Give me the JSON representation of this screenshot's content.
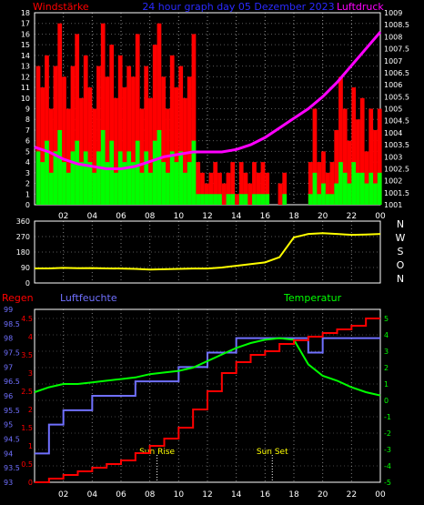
{
  "header": {
    "left_title": "Windstärke",
    "center_title": "24 hour graph day  05 Dezember 2023",
    "right_title": "Luftdruck"
  },
  "colors": {
    "background": "#000000",
    "wind_gust": "#ff0000",
    "wind_speed": "#00ff00",
    "pressure": "#ff00ff",
    "direction": "#ffff00",
    "humidity": "#7070ff",
    "temperature": "#00ff00",
    "rain": "#ff0000",
    "title": "#2a2aff",
    "axis": "#ffffff",
    "grid": "#ffffff"
  },
  "x_ticks": [
    "02",
    "04",
    "06",
    "08",
    "10",
    "12",
    "14",
    "16",
    "18",
    "20",
    "22",
    "00"
  ],
  "panel_wind": {
    "left_ticks": [
      "0",
      "1",
      "2",
      "3",
      "4",
      "5",
      "6",
      "7",
      "8",
      "9",
      "10",
      "11",
      "12",
      "13",
      "14",
      "15",
      "16",
      "17",
      "18"
    ],
    "right_ticks": [
      "1001",
      "1001.5",
      "1002",
      "1002.5",
      "1003",
      "1003.5",
      "1004",
      "1004.5",
      "1005",
      "1005.5",
      "1006",
      "1006.5",
      "1007",
      "1007.5",
      "1008",
      "1008.5",
      "1009"
    ]
  },
  "panel_direction": {
    "left_ticks": [
      "0",
      "90",
      "180",
      "270",
      "360"
    ],
    "compass": [
      "N",
      "W",
      "S",
      "O",
      "N"
    ]
  },
  "panel_climate": {
    "label_rain": "Regen",
    "label_humidity": "Luftfeuchte",
    "label_temperature": "Temperatur",
    "humidity_ticks": [
      "93",
      "93.5",
      "94",
      "94.5",
      "95",
      "95.5",
      "96",
      "96.5",
      "97",
      "97.5",
      "98",
      "98.5",
      "99"
    ],
    "rain_ticks": [
      "0",
      "0.5",
      "1",
      "1.5",
      "2",
      "2.5",
      "3",
      "3.5",
      "4",
      "4.5"
    ],
    "temp_ticks": [
      "-5",
      "-4",
      "-3",
      "-2",
      "-1",
      "0",
      "1",
      "2",
      "3",
      "4",
      "5"
    ],
    "sun_rise": "Sun Rise",
    "sun_set": "Sun Set"
  },
  "chart_data": [
    {
      "type": "bar",
      "subtype": "wind_and_pressure",
      "x_unit": "hour",
      "x_range": [
        0,
        24
      ],
      "ylim_left": [
        0,
        18
      ],
      "ylim_right": [
        1001,
        1009
      ],
      "grid": true,
      "series": [
        {
          "name": "Windstärke",
          "kind": "gust_bars",
          "axis": "left",
          "hours": [
            0.1,
            0.4,
            0.7,
            1.0,
            1.3,
            1.6,
            1.9,
            2.2,
            2.5,
            2.8,
            3.1,
            3.4,
            3.7,
            4.0,
            4.3,
            4.6,
            4.9,
            5.2,
            5.5,
            5.8,
            6.1,
            6.4,
            6.7,
            7.0,
            7.3,
            7.6,
            7.9,
            8.2,
            8.5,
            8.8,
            9.1,
            9.4,
            9.7,
            10.0,
            10.3,
            10.6,
            10.9,
            11.2,
            11.5,
            11.8,
            12.1,
            12.4,
            12.7,
            13.0,
            13.3,
            13.6,
            13.9,
            14.2,
            14.5,
            14.8,
            15.1,
            15.4,
            15.7,
            16.0,
            16.3,
            16.6,
            16.9,
            17.2,
            17.5,
            17.8,
            18.1,
            18.4,
            18.7,
            19.0,
            19.3,
            19.6,
            19.9,
            20.2,
            20.5,
            20.8,
            21.1,
            21.4,
            21.7,
            22.0,
            22.3,
            22.6,
            22.9,
            23.2,
            23.5,
            23.8
          ],
          "values": [
            13,
            11,
            14,
            9,
            13,
            17,
            12,
            9,
            13,
            16,
            10,
            14,
            11,
            9,
            13,
            17,
            12,
            15,
            10,
            14,
            11,
            13,
            12,
            16,
            9,
            13,
            10,
            15,
            17,
            12,
            9,
            14,
            11,
            13,
            10,
            12,
            16,
            4,
            3,
            2,
            3,
            4,
            3,
            2,
            3,
            4,
            1,
            4,
            3,
            2,
            4,
            3,
            4,
            3,
            0,
            0,
            2,
            3,
            0,
            0,
            0,
            0,
            0,
            4,
            9,
            4,
            5,
            3,
            4,
            7,
            12,
            9,
            6,
            11,
            8,
            10,
            5,
            9,
            7,
            9
          ]
        },
        {
          "name": "wind speed",
          "kind": "mean_bars",
          "axis": "left",
          "values": [
            5,
            4,
            6,
            3,
            5,
            7,
            4,
            3,
            5,
            6,
            4,
            5,
            4,
            3,
            5,
            7,
            4,
            6,
            3,
            5,
            4,
            5,
            4,
            6,
            3,
            5,
            3,
            6,
            7,
            4,
            3,
            5,
            4,
            5,
            3,
            4,
            6,
            1,
            1,
            1,
            1,
            1,
            1,
            0,
            1,
            1,
            0,
            1,
            1,
            0,
            1,
            1,
            1,
            1,
            0,
            0,
            0,
            1,
            0,
            0,
            0,
            0,
            0,
            1,
            3,
            1,
            2,
            1,
            1,
            2,
            4,
            3,
            2,
            4,
            3,
            3,
            2,
            3,
            2,
            3
          ]
        },
        {
          "name": "Luftdruck",
          "kind": "line",
          "axis": "right",
          "x": [
            0,
            1,
            2,
            3,
            4,
            5,
            6,
            7,
            8,
            9,
            10,
            11,
            12,
            13,
            14,
            15,
            16,
            17,
            18,
            19,
            20,
            21,
            22,
            23,
            24
          ],
          "y": [
            1003.4,
            1003.2,
            1002.9,
            1002.7,
            1002.6,
            1002.5,
            1002.5,
            1002.6,
            1002.8,
            1003.0,
            1003.1,
            1003.2,
            1003.2,
            1003.2,
            1003.3,
            1003.5,
            1003.8,
            1004.2,
            1004.6,
            1005.0,
            1005.5,
            1006.1,
            1006.8,
            1007.5,
            1008.2
          ]
        }
      ]
    },
    {
      "type": "line",
      "subtype": "wind_direction",
      "x_range": [
        0,
        24
      ],
      "ylim": [
        0,
        360
      ],
      "series": [
        {
          "name": "direction",
          "x": [
            0,
            1,
            2,
            3,
            4,
            5,
            6,
            7,
            8,
            9,
            10,
            11,
            12,
            13,
            14,
            15,
            16,
            17,
            18,
            18.5,
            19,
            20,
            21,
            22,
            23,
            24
          ],
          "y": [
            85,
            85,
            88,
            86,
            87,
            85,
            84,
            82,
            78,
            80,
            82,
            84,
            84,
            90,
            100,
            110,
            120,
            150,
            265,
            275,
            285,
            290,
            285,
            280,
            282,
            285
          ]
        }
      ]
    },
    {
      "type": "line",
      "subtype": "climate",
      "x_range": [
        0,
        24
      ],
      "ylim_humidity": [
        93,
        99
      ],
      "ylim_rain": [
        0,
        4.5
      ],
      "ylim_temperature": [
        -5,
        5
      ],
      "series": [
        {
          "name": "Luftfeuchte",
          "axis": "left",
          "x": [
            0,
            1,
            1,
            2,
            2,
            3,
            3,
            4,
            4,
            5,
            5,
            6,
            6,
            7,
            7,
            8,
            8,
            9,
            9,
            10,
            10,
            11,
            11,
            12,
            12,
            13,
            13,
            14,
            14,
            15,
            15,
            16,
            16,
            17,
            17,
            18,
            18,
            19,
            19,
            20,
            20,
            21,
            21,
            22,
            22,
            23,
            23,
            24
          ],
          "y": [
            94,
            94,
            95,
            95,
            95.5,
            95.5,
            95.5,
            95.5,
            96,
            96,
            96,
            96,
            96,
            96,
            96.5,
            96.5,
            96.5,
            96.5,
            96.5,
            96.5,
            97,
            97,
            97,
            97,
            97.5,
            97.5,
            97.5,
            97.5,
            98,
            98,
            98,
            98,
            98,
            98,
            98,
            98,
            98,
            98,
            97.5,
            97.5,
            98,
            98,
            98,
            98,
            98,
            98,
            98,
            98
          ]
        },
        {
          "name": "Regen",
          "axis": "rain",
          "x": [
            0,
            1,
            1,
            2,
            2,
            3,
            3,
            4,
            4,
            5,
            5,
            6,
            6,
            7,
            7,
            8,
            8,
            9,
            9,
            10,
            10,
            11,
            11,
            12,
            12,
            13,
            13,
            14,
            14,
            15,
            15,
            16,
            16,
            17,
            17,
            18,
            18,
            19,
            19,
            20,
            20,
            21,
            21,
            22,
            22,
            23,
            23,
            24
          ],
          "y": [
            0,
            0,
            0.1,
            0.1,
            0.2,
            0.2,
            0.3,
            0.3,
            0.4,
            0.4,
            0.5,
            0.5,
            0.6,
            0.6,
            0.8,
            0.8,
            1.0,
            1.0,
            1.2,
            1.2,
            1.5,
            1.5,
            2.0,
            2.0,
            2.5,
            2.5,
            3.0,
            3.0,
            3.3,
            3.3,
            3.5,
            3.5,
            3.6,
            3.6,
            3.8,
            3.8,
            3.9,
            3.9,
            4.0,
            4.0,
            4.1,
            4.1,
            4.2,
            4.2,
            4.3,
            4.3,
            4.5,
            4.5
          ]
        },
        {
          "name": "Temperatur",
          "axis": "right",
          "x": [
            0,
            1,
            2,
            3,
            4,
            5,
            6,
            7,
            8,
            9,
            10,
            11,
            12,
            13,
            14,
            15,
            16,
            17,
            18,
            19,
            20,
            21,
            22,
            23,
            24
          ],
          "y": [
            0.5,
            0.8,
            1.0,
            1.0,
            1.1,
            1.2,
            1.3,
            1.4,
            1.6,
            1.7,
            1.8,
            2.0,
            2.4,
            2.8,
            3.2,
            3.5,
            3.7,
            3.8,
            3.7,
            2.2,
            1.5,
            1.2,
            0.8,
            0.5,
            0.3
          ]
        }
      ],
      "annotations": [
        {
          "text": "Sun Rise",
          "x": 8.5
        },
        {
          "text": "Sun Set",
          "x": 16.5
        }
      ]
    }
  ]
}
